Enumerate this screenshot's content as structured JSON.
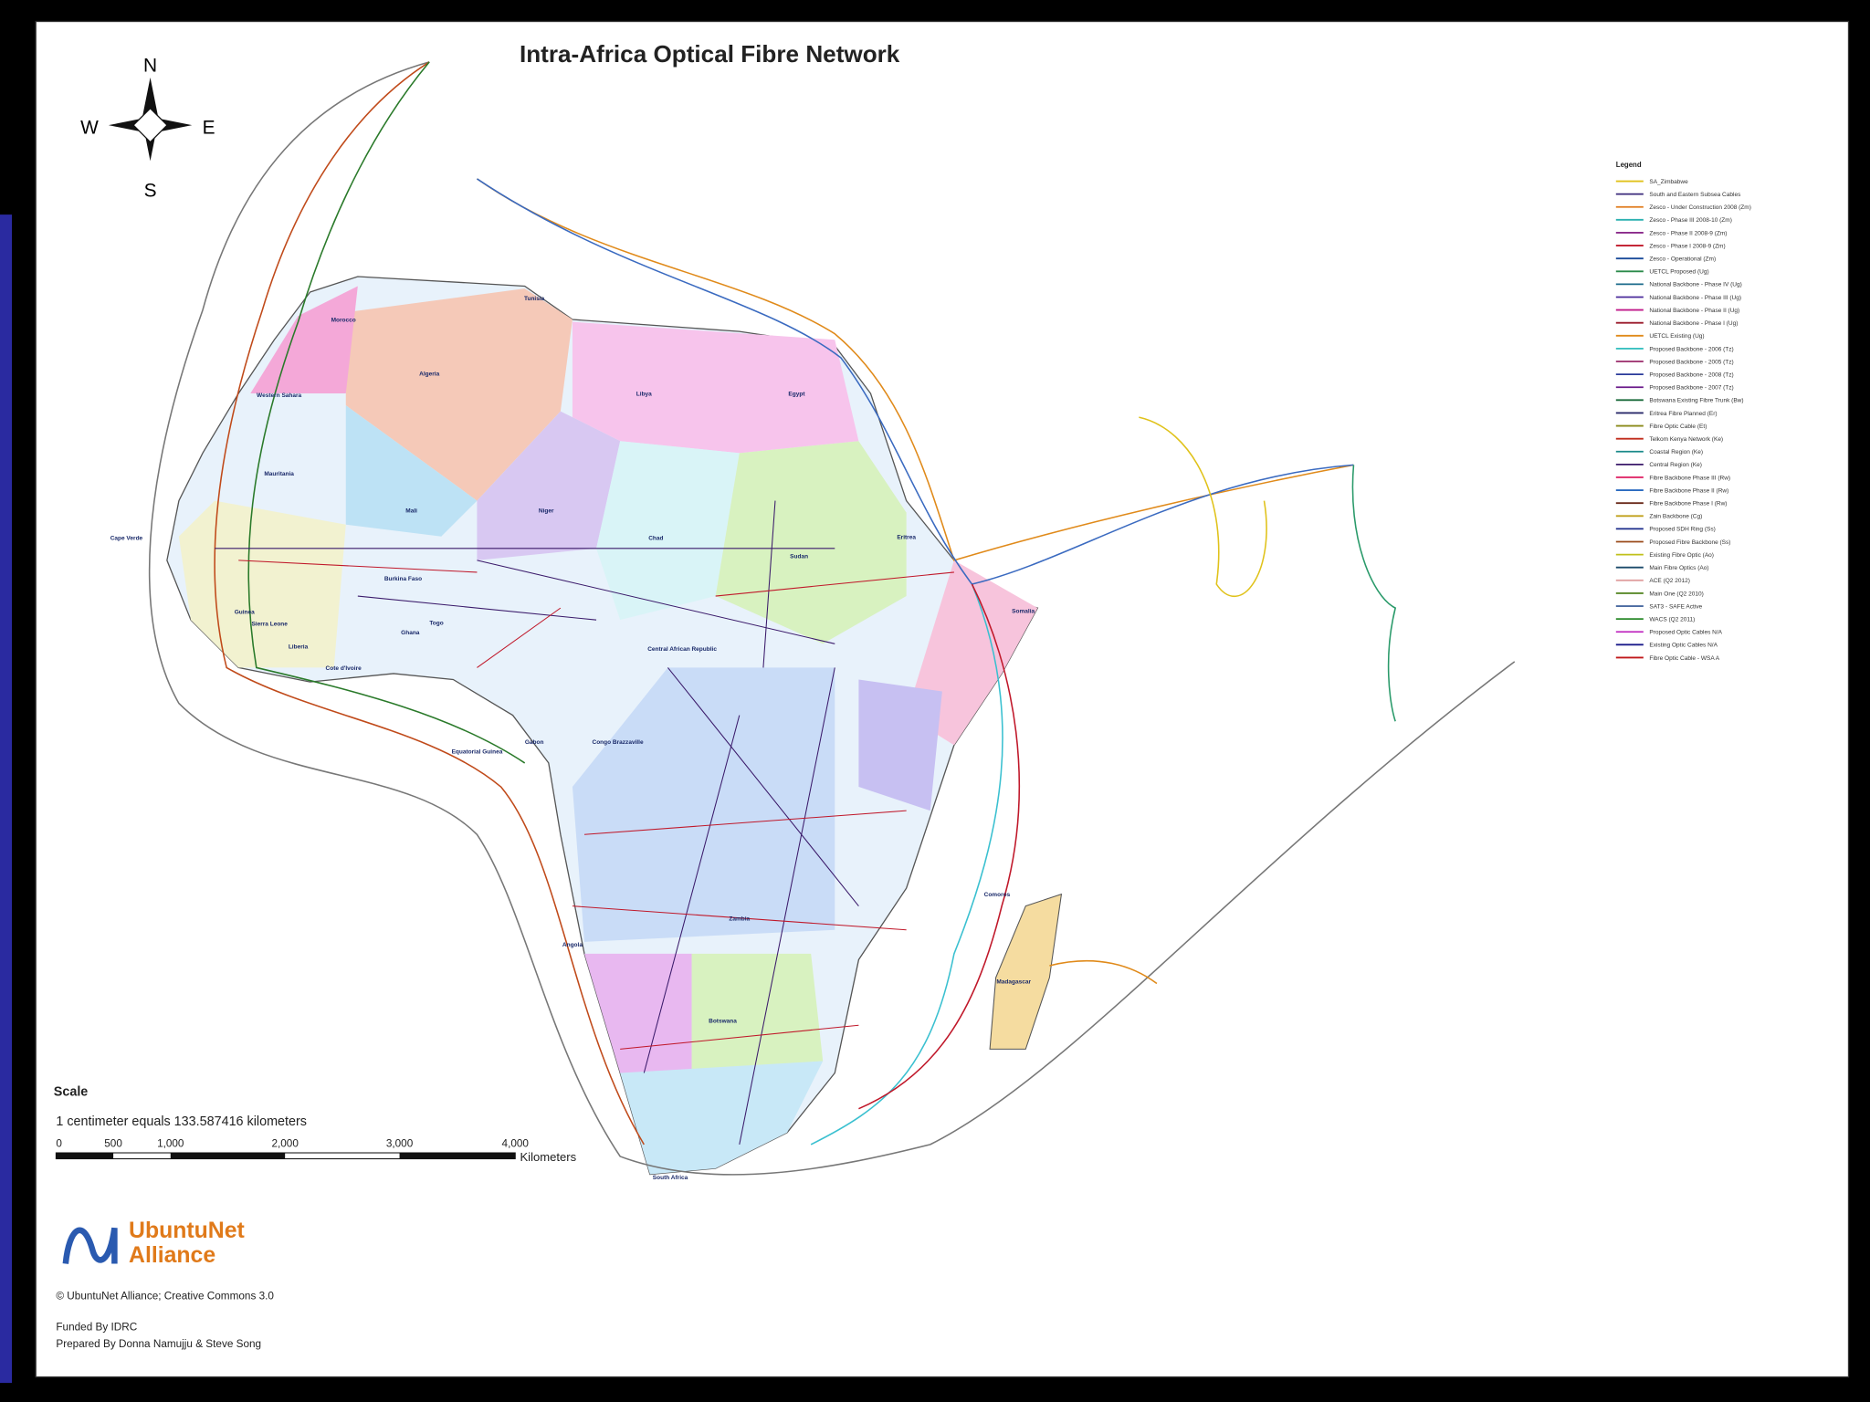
{
  "map": {
    "title": "Intra-Africa Optical Fibre Network",
    "compass": {
      "north": "N",
      "south": "S",
      "east": "E",
      "west": "W"
    },
    "countries": [
      "Morocco",
      "Algeria",
      "Tunisia",
      "Libya",
      "Egypt",
      "Western Sahara",
      "Mauritania",
      "Mali",
      "Niger",
      "Chad",
      "Sudan",
      "Eritrea",
      "Somalia",
      "Central African Republic",
      "Gabon",
      "Congo Brazzaville",
      "Equatorial Guinea",
      "Ghana",
      "Cape Verde",
      "Burkina Faso",
      "Togo",
      "Guinea",
      "Sierra Leone",
      "Liberia",
      "Cote d'Ivoire",
      "Zambia",
      "Angola",
      "Botswana",
      "South Africa",
      "Madagascar",
      "Comoros"
    ],
    "legend": {
      "title": "Legend",
      "items": [
        {
          "label": "SA_Zimbabwe",
          "color": "#e0c21a"
        },
        {
          "label": "South and Eastern Subsea Cables",
          "color": "#3a2a7a"
        },
        {
          "label": "Zesco - Under Construction 2008 (Zm)",
          "color": "#e07a1a"
        },
        {
          "label": "Zesco - Phase III 2008-10 (Zm)",
          "color": "#2ab0b0"
        },
        {
          "label": "Zesco - Phase II 2008-9 (Zm)",
          "color": "#8a2a8a"
        },
        {
          "label": "Zesco - Phase I 2008-9 (Zm)",
          "color": "#c0182a"
        },
        {
          "label": "Zesco - Operational (Zm)",
          "color": "#1a4a9a"
        },
        {
          "label": "UETCL Proposed (Ug)",
          "color": "#2a8a4a"
        },
        {
          "label": "National Backbone - Phase IV (Ug)",
          "color": "#1a6a8a"
        },
        {
          "label": "National Backbone - Phase III (Ug)",
          "color": "#4a2a9a"
        },
        {
          "label": "National Backbone - Phase II (Ug)",
          "color": "#c01a8a"
        },
        {
          "label": "National Backbone - Phase I (Ug)",
          "color": "#9a1a2a"
        },
        {
          "label": "UETCL Existing (Ug)",
          "color": "#e08a1a"
        },
        {
          "label": "Proposed Backbone - 2006 (Tz)",
          "color": "#3ac0c0"
        },
        {
          "label": "Proposed Backbone - 2005 (Tz)",
          "color": "#9a2a6a"
        },
        {
          "label": "Proposed Backbone - 2008 (Tz)",
          "color": "#2a3a9a"
        },
        {
          "label": "Proposed Backbone - 2007 (Tz)",
          "color": "#6a1a8a"
        },
        {
          "label": "Botswana Existing Fibre Trunk (Bw)",
          "color": "#1a6a3a"
        },
        {
          "label": "Eritrea Fibre Planned (Er)",
          "color": "#2a2a6a"
        },
        {
          "label": "Fibre Optic Cable (Et)",
          "color": "#8a8a1a"
        },
        {
          "label": "Telkom Kenya Network (Ke)",
          "color": "#c02a1a"
        },
        {
          "label": "Coastal Region (Ke)",
          "color": "#1a8a8a"
        },
        {
          "label": "Central Region (Ke)",
          "color": "#3a1a6a"
        },
        {
          "label": "Fibre Backbone Phase III (Rw)",
          "color": "#e02a6a"
        },
        {
          "label": "Fibre Backbone Phase II (Rw)",
          "color": "#2a6ac0"
        },
        {
          "label": "Fibre Backbone Phase I (Rw)",
          "color": "#6a2a1a"
        },
        {
          "label": "Zain Backbone (Cg)",
          "color": "#c0a01a"
        },
        {
          "label": "Proposed SDH Ring (Ss)",
          "color": "#1a2a8a"
        },
        {
          "label": "Proposed Fibre Backbone (Ss)",
          "color": "#9a4a1a"
        },
        {
          "label": "Existing Fibre Optic (Ao)",
          "color": "#c0c01a"
        },
        {
          "label": "Main Fibre Optics (Ao)",
          "color": "#1a4a6a"
        },
        {
          "label": "ACE (Q2 2012)",
          "color": "#e0a0a0"
        },
        {
          "label": "Main One (Q2 2010)",
          "color": "#5a8a2a"
        },
        {
          "label": "SAT3 - SAFE Active",
          "color": "#4a6aa0"
        },
        {
          "label": "WACS (Q2 2011)",
          "color": "#2a8a2a"
        },
        {
          "label": "Proposed Optic Cables N/A",
          "color": "#c02ac0"
        },
        {
          "label": "Existing Optic Cables N/A",
          "color": "#1a1a8a"
        },
        {
          "label": "Fibre Optic Cable - WSA A",
          "color": "#c0181a"
        }
      ]
    },
    "scale": {
      "title": "Scale",
      "ratio": "1 centimeter equals 133.587416 kilometers",
      "ticks": [
        "0",
        "500",
        "1,000",
        "2,000",
        "3,000",
        "4,000"
      ],
      "unit": "Kilometers"
    },
    "logo": {
      "line1": "UbuntuNet",
      "line2": "Alliance"
    },
    "credits": [
      "© UbuntuNet Alliance; Creative Commons 3.0",
      "Funded By IDRC",
      "Prepared By Donna Namujju & Steve Song"
    ]
  }
}
